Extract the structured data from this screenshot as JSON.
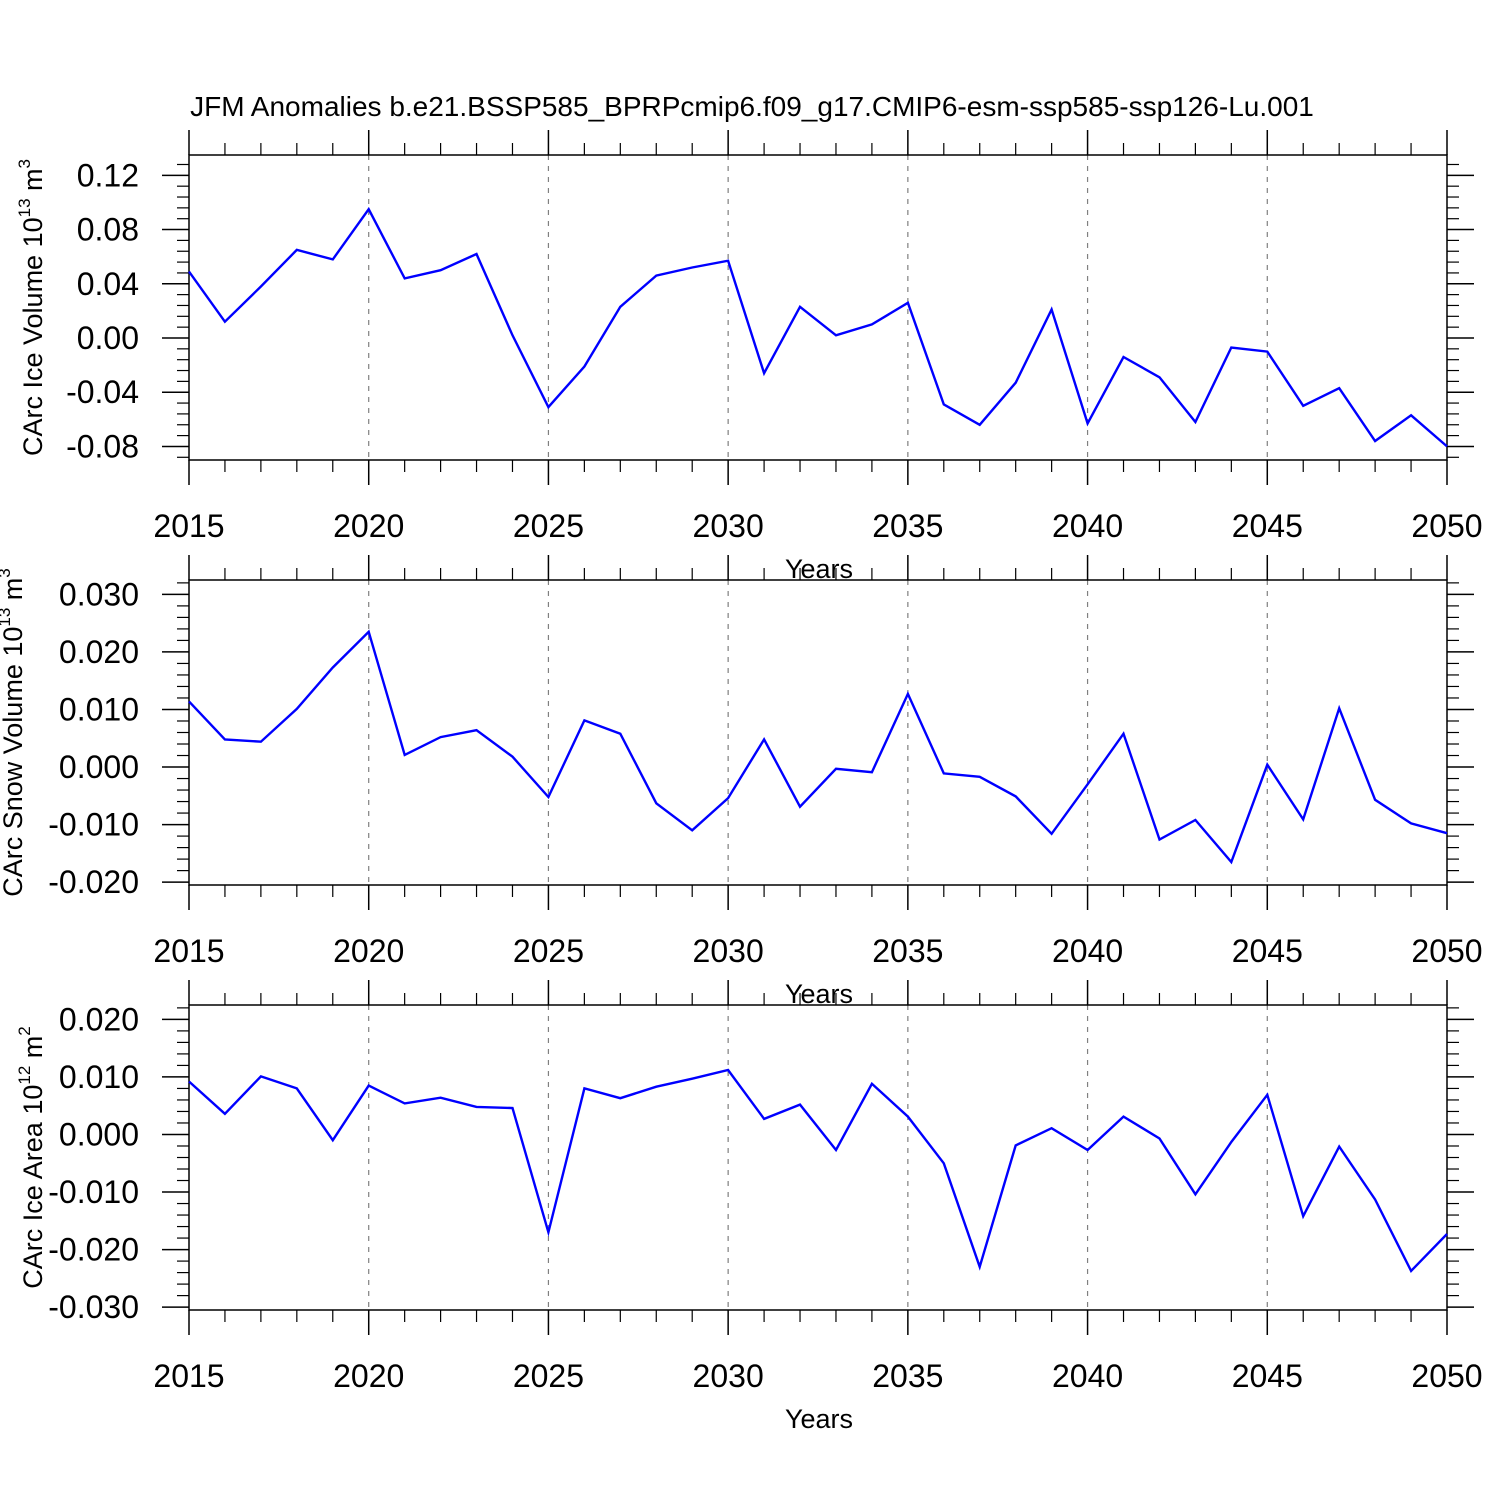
{
  "title": "JFM Anomalies b.e21.BSSP585_BPRPcmip6.f09_g17.CMIP6-esm-ssp585-ssp126-Lu.001",
  "colors": {
    "line": "#0000ff",
    "axis": "#000000",
    "grid": "#808080"
  },
  "chart_data": [
    {
      "type": "line",
      "ylabel": {
        "text": "CArc Ice Volume 10",
        "exp": "13",
        "unit": " m",
        "unit_exp": "3"
      },
      "xlabel": "Years",
      "xlim": [
        2015,
        2050
      ],
      "ylim": [
        -0.09,
        0.135
      ],
      "xticks": [
        2015,
        2020,
        2025,
        2030,
        2035,
        2040,
        2045,
        2050
      ],
      "xticklabels": [
        "2015",
        "2020",
        "2025",
        "2030",
        "2035",
        "2040",
        "2045",
        "2050"
      ],
      "yticks": [
        0.12,
        0.08,
        0.04,
        0.0,
        -0.04,
        -0.08
      ],
      "yticklabels": [
        "0.12",
        "0.08",
        "0.04",
        "0.00",
        "-0.04",
        "-0.08"
      ],
      "x": [
        2015,
        2016,
        2017,
        2018,
        2019,
        2020,
        2021,
        2022,
        2023,
        2024,
        2025,
        2026,
        2027,
        2028,
        2029,
        2030,
        2031,
        2032,
        2033,
        2034,
        2035,
        2036,
        2037,
        2038,
        2039,
        2040,
        2041,
        2042,
        2043,
        2044,
        2045,
        2046,
        2047,
        2048,
        2049,
        2050
      ],
      "values": [
        0.049,
        0.012,
        0.038,
        0.065,
        0.058,
        0.095,
        0.044,
        0.05,
        0.062,
        0.002,
        -0.051,
        -0.021,
        0.023,
        0.046,
        0.052,
        0.057,
        -0.026,
        0.023,
        0.002,
        0.01,
        0.026,
        -0.049,
        -0.064,
        -0.033,
        0.021,
        -0.063,
        -0.014,
        -0.029,
        -0.062,
        -0.007,
        -0.01,
        -0.05,
        -0.037,
        -0.076,
        -0.057,
        -0.08
      ]
    },
    {
      "type": "line",
      "ylabel": {
        "text": "CArc Snow Volume 10",
        "exp": "13",
        "unit": " m",
        "unit_exp": "3"
      },
      "xlabel": "Years",
      "xlim": [
        2015,
        2050
      ],
      "ylim": [
        -0.0205,
        0.0325
      ],
      "xticks": [
        2015,
        2020,
        2025,
        2030,
        2035,
        2040,
        2045,
        2050
      ],
      "xticklabels": [
        "2015",
        "2020",
        "2025",
        "2030",
        "2035",
        "2040",
        "2045",
        "2050"
      ],
      "yticks": [
        0.03,
        0.02,
        0.01,
        0.0,
        -0.01,
        -0.02
      ],
      "yticklabels": [
        "0.030",
        "0.020",
        "0.010",
        "0.000",
        "-0.010",
        "-0.020"
      ],
      "x": [
        2015,
        2016,
        2017,
        2018,
        2019,
        2020,
        2021,
        2022,
        2023,
        2024,
        2025,
        2026,
        2027,
        2028,
        2029,
        2030,
        2031,
        2032,
        2033,
        2034,
        2035,
        2036,
        2037,
        2038,
        2039,
        2040,
        2041,
        2042,
        2043,
        2044,
        2045,
        2046,
        2047,
        2048,
        2049,
        2050
      ],
      "values": [
        0.0114,
        0.0048,
        0.0044,
        0.0101,
        0.0173,
        0.0235,
        0.0021,
        0.0052,
        0.0064,
        0.0018,
        -0.0052,
        0.0081,
        0.0058,
        -0.0063,
        -0.011,
        -0.0054,
        0.0048,
        -0.0069,
        -0.0003,
        -0.0009,
        0.0127,
        -0.0011,
        -0.0017,
        -0.0051,
        -0.0116,
        -0.003,
        0.0058,
        -0.0126,
        -0.0092,
        -0.0165,
        0.0004,
        -0.0091,
        0.0102,
        -0.0057,
        -0.0098,
        -0.0115
      ]
    },
    {
      "type": "line",
      "ylabel": {
        "text": "CArc Ice Area 10",
        "exp": "12",
        "unit": " m",
        "unit_exp": "2"
      },
      "xlabel": "Years",
      "xlim": [
        2015,
        2050
      ],
      "ylim": [
        -0.0305,
        0.0225
      ],
      "xticks": [
        2015,
        2020,
        2025,
        2030,
        2035,
        2040,
        2045,
        2050
      ],
      "xticklabels": [
        "2015",
        "2020",
        "2025",
        "2030",
        "2035",
        "2040",
        "2045",
        "2050"
      ],
      "yticks": [
        0.02,
        0.01,
        0.0,
        -0.01,
        -0.02,
        -0.03
      ],
      "yticklabels": [
        "0.020",
        "0.010",
        "0.000",
        "-0.010",
        "-0.020",
        "-0.030"
      ],
      "x": [
        2015,
        2016,
        2017,
        2018,
        2019,
        2020,
        2021,
        2022,
        2023,
        2024,
        2025,
        2026,
        2027,
        2028,
        2029,
        2030,
        2031,
        2032,
        2033,
        2034,
        2035,
        2036,
        2037,
        2038,
        2039,
        2040,
        2041,
        2042,
        2043,
        2044,
        2045,
        2046,
        2047,
        2048,
        2049,
        2050
      ],
      "values": [
        0.0092,
        0.0036,
        0.0101,
        0.008,
        -0.001,
        0.0085,
        0.0054,
        0.0064,
        0.0048,
        0.0046,
        -0.017,
        0.008,
        0.0063,
        0.0083,
        0.0097,
        0.0112,
        0.0027,
        0.0052,
        -0.0027,
        0.0088,
        0.0031,
        -0.005,
        -0.023,
        -0.0019,
        0.0011,
        -0.0027,
        0.0031,
        -0.0007,
        -0.0104,
        -0.0013,
        0.0069,
        -0.0142,
        -0.0021,
        -0.0113,
        -0.0237,
        -0.0173
      ]
    }
  ]
}
